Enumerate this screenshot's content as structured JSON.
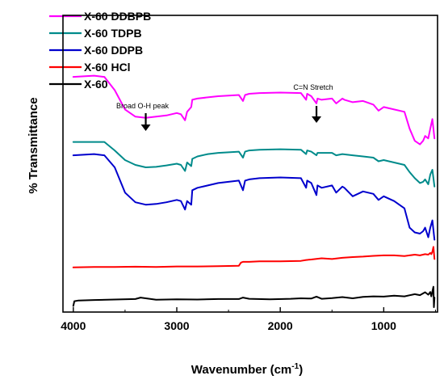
{
  "chart_data": {
    "type": "line",
    "xlabel": "Wavenumber (cm",
    "xlabel_superscript": "-1",
    "xlabel_close": ")",
    "ylabel": "% Transmittance",
    "xlim": [
      4100,
      480
    ],
    "x_reversed": true,
    "x_ticks": [
      4000,
      3000,
      2000,
      1000
    ],
    "y_ticks": [],
    "grid": false,
    "legend_position": "top-left",
    "series": [
      {
        "name": "X-60 DDBPB",
        "color": "#ff00ff",
        "x": [
          4000,
          3800,
          3700,
          3600,
          3500,
          3400,
          3300,
          3200,
          3100,
          3000,
          2960,
          2920,
          2900,
          2860,
          2850,
          2800,
          2700,
          2600,
          2400,
          2360,
          2340,
          2300,
          2200,
          2000,
          1800,
          1750,
          1740,
          1700,
          1650,
          1640,
          1600,
          1500,
          1460,
          1400,
          1380,
          1300,
          1200,
          1100,
          1050,
          1000,
          900,
          800,
          750,
          700,
          650,
          620,
          600,
          570,
          550,
          530,
          510
        ],
        "y": [
          89.5,
          90,
          89.5,
          84,
          76,
          73,
          72.5,
          73,
          73.5,
          74.5,
          74,
          71.5,
          75,
          77,
          80,
          80.5,
          81,
          81.5,
          82,
          79.5,
          82,
          82.5,
          82.8,
          83,
          82.8,
          80,
          82.5,
          81.5,
          78.5,
          80.5,
          80,
          80.5,
          78.5,
          80.5,
          80,
          79,
          79.5,
          78,
          75.5,
          77,
          76,
          75,
          68,
          63,
          61.5,
          63,
          65,
          64,
          68,
          72,
          64
        ]
      },
      {
        "name": "X-60 TDPB",
        "color": "#008b8b",
        "x": [
          4000,
          3800,
          3700,
          3600,
          3500,
          3400,
          3300,
          3200,
          3100,
          3000,
          2960,
          2920,
          2900,
          2860,
          2850,
          2800,
          2700,
          2600,
          2400,
          2360,
          2340,
          2300,
          2200,
          2000,
          1800,
          1750,
          1740,
          1700,
          1650,
          1640,
          1600,
          1500,
          1460,
          1400,
          1300,
          1200,
          1100,
          1050,
          1000,
          900,
          800,
          750,
          700,
          650,
          620,
          600,
          570,
          550,
          530,
          510
        ],
        "y": [
          62.5,
          62.5,
          62.5,
          59,
          55,
          53,
          52,
          52.2,
          52.8,
          53.5,
          53,
          50.5,
          54,
          52.5,
          55.5,
          56.5,
          57.5,
          58,
          58.5,
          56,
          58.5,
          59,
          59.3,
          59.5,
          59.3,
          57.5,
          59,
          58.5,
          57,
          58,
          58,
          58,
          57,
          57.5,
          57,
          56.5,
          56,
          54.5,
          55,
          54,
          53,
          50,
          47.5,
          45.5,
          46,
          47,
          45,
          49,
          51,
          44
        ]
      },
      {
        "name": "X-60 DDPB",
        "color": "#0000cd",
        "x": [
          4000,
          3800,
          3700,
          3600,
          3500,
          3400,
          3300,
          3200,
          3100,
          3000,
          2960,
          2920,
          2900,
          2860,
          2850,
          2800,
          2700,
          2600,
          2400,
          2360,
          2340,
          2300,
          2200,
          2000,
          1800,
          1750,
          1740,
          1700,
          1650,
          1640,
          1600,
          1500,
          1460,
          1400,
          1380,
          1300,
          1200,
          1100,
          1050,
          1000,
          900,
          800,
          750,
          700,
          650,
          620,
          600,
          570,
          550,
          530,
          510
        ],
        "y": [
          57,
          57.5,
          57,
          52,
          41.5,
          37.5,
          36.5,
          36.8,
          37.5,
          38.5,
          38,
          34.5,
          38,
          36.5,
          42.5,
          43.5,
          44.5,
          45.5,
          46.5,
          42.5,
          46.5,
          47,
          47.5,
          47.8,
          47.5,
          43.5,
          46.5,
          45.5,
          40.5,
          44.5,
          43.5,
          44.5,
          41.5,
          44,
          43.5,
          40,
          42,
          41,
          38.5,
          40,
          38,
          35,
          27,
          25,
          24.5,
          25.5,
          27,
          23,
          27,
          30,
          22
        ]
      },
      {
        "name": "X-60 HCl",
        "color": "#ff0000",
        "x": [
          4000,
          3800,
          3600,
          3400,
          3200,
          3000,
          2800,
          2600,
          2400,
          2380,
          2360,
          2300,
          2200,
          2000,
          1800,
          1750,
          1700,
          1600,
          1500,
          1400,
          1300,
          1200,
          1100,
          1000,
          900,
          800,
          700,
          650,
          600,
          570,
          550,
          540,
          530,
          520,
          510
        ],
        "y": [
          10.5,
          10.7,
          10.7,
          10.8,
          10.7,
          10.9,
          10.9,
          11,
          11.2,
          12.5,
          12.8,
          12.8,
          13,
          13,
          13.2,
          13.6,
          13.8,
          14.3,
          14,
          14.5,
          14.8,
          15,
          15.3,
          15.5,
          15.5,
          15.2,
          15.8,
          15.5,
          16,
          15.8,
          16.5,
          16,
          17,
          19,
          14
        ]
      },
      {
        "name": "X-60",
        "color": "#000000",
        "x": [
          4000,
          3990,
          3950,
          3800,
          3600,
          3400,
          3350,
          3200,
          3000,
          2800,
          2600,
          2400,
          2360,
          2300,
          2100,
          1900,
          1800,
          1700,
          1650,
          1600,
          1500,
          1400,
          1300,
          1200,
          1100,
          1000,
          900,
          800,
          700,
          650,
          600,
          570,
          550,
          540,
          530,
          520,
          515,
          510
        ],
        "y": [
          -5.5,
          -3.5,
          -3.2,
          -3,
          -2.8,
          -2.6,
          -2,
          -2.9,
          -2.7,
          -2.8,
          -2.6,
          -2.6,
          -2,
          -2.5,
          -2.7,
          -2.5,
          -2.3,
          -2.4,
          -1.6,
          -2.5,
          -2.2,
          -1.8,
          -2.3,
          -1.7,
          -1.5,
          -1.6,
          -1.2,
          -1.5,
          -0.6,
          -1,
          0.2,
          -0.8,
          0.3,
          -1.5,
          0.5,
          2.5,
          -6,
          -2
        ]
      }
    ],
    "annotations": [
      {
        "text": "Broad  O-H peak",
        "x": 3300
      },
      {
        "text": "C=N Stretch",
        "x": 1650
      }
    ]
  }
}
